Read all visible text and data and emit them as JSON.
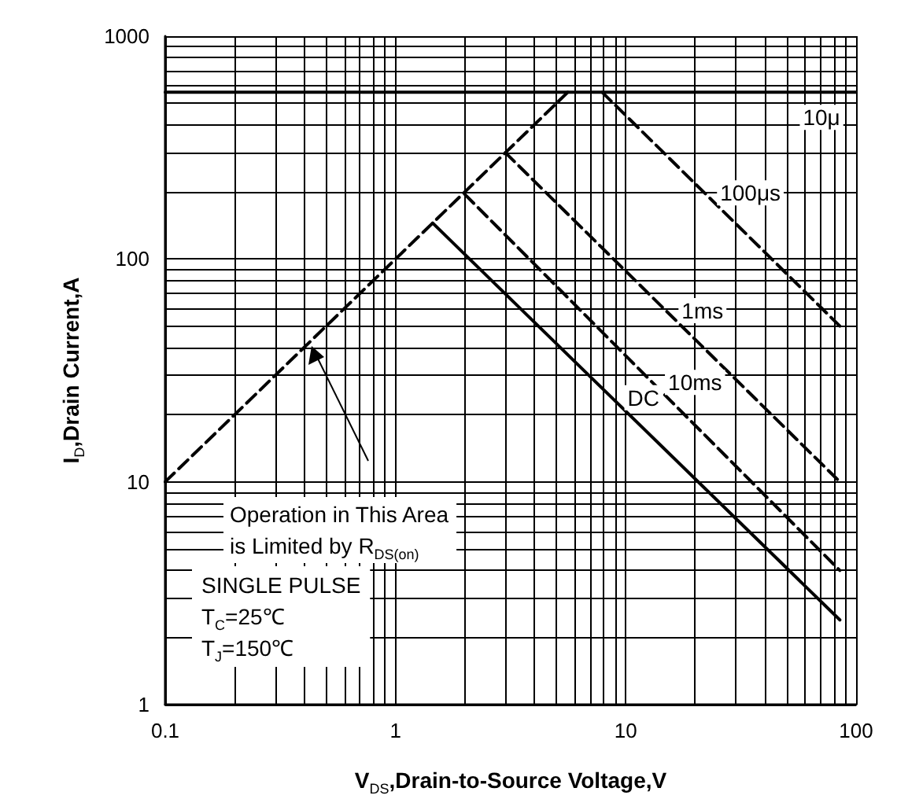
{
  "chart_data": {
    "type": "line",
    "xlabel": "V$_{DS}$,Drain-to-Source Voltage,V",
    "ylabel": "I$_{D}$,Drain Current,A",
    "log": "xy",
    "xlim": [
      0.1,
      100
    ],
    "xticks": [
      0.1,
      {
        "value": 0.2,
        "label": null
      },
      {
        "value": 0.3,
        "label": null
      },
      {
        "value": 0.4,
        "label": null
      },
      {
        "value": 0.5,
        "label": null
      },
      {
        "value": 0.6,
        "label": null
      },
      {
        "value": 0.7,
        "label": null
      },
      {
        "value": 0.8,
        "label": null
      },
      {
        "value": 0.9,
        "label": null
      },
      1,
      {
        "value": 2,
        "label": null
      },
      {
        "value": 3,
        "label": null
      },
      {
        "value": 4,
        "label": null
      },
      {
        "value": 5,
        "label": null
      },
      {
        "value": 6,
        "label": null
      },
      {
        "value": 7,
        "label": null
      },
      {
        "value": 8,
        "label": null
      },
      {
        "value": 9,
        "label": null
      },
      10,
      {
        "value": 20,
        "label": null
      },
      {
        "value": 30,
        "label": null
      },
      {
        "value": 40,
        "label": null
      },
      {
        "value": 50,
        "label": null
      },
      {
        "value": 60,
        "label": null
      },
      {
        "value": 70,
        "label": null
      },
      {
        "value": 80,
        "label": null
      },
      {
        "value": 90,
        "label": null
      },
      100
    ],
    "ylim": [
      1,
      1000
    ],
    "yticks": [
      1,
      {
        "value": 2,
        "label": null
      },
      {
        "value": 3,
        "label": null
      },
      {
        "value": 4,
        "label": null
      },
      {
        "value": 5,
        "label": null
      },
      {
        "value": 6,
        "label": null
      },
      {
        "value": 7,
        "label": null
      },
      {
        "value": 8,
        "label": null
      },
      {
        "value": 9,
        "label": null
      },
      10,
      {
        "value": 20,
        "label": null
      },
      {
        "value": 30,
        "label": null
      },
      {
        "value": 40,
        "label": null
      },
      {
        "value": 50,
        "label": null
      },
      {
        "value": 60,
        "label": null
      },
      {
        "value": 70,
        "label": null
      },
      {
        "value": 80,
        "label": null
      },
      {
        "value": 90,
        "label": null
      },
      100,
      {
        "value": 200,
        "label": null
      },
      {
        "value": 300,
        "label": null
      },
      {
        "value": 400,
        "label": null
      },
      {
        "value": 500,
        "label": null
      },
      {
        "value": 600,
        "label": null
      },
      {
        "value": 700,
        "label": null
      },
      {
        "value": 800,
        "label": null
      },
      {
        "value": 900,
        "label": null
      },
      1000
    ],
    "grid": true,
    "legend": false,
    "marker": "none",
    "series": [
      {
        "color": "#000000",
        "line_style": "dashed",
        "x": [
          0.1,
          5.75
        ],
        "values": [
          10,
          575
        ]
      },
      {
        "name": "10μ",
        "color": "#000000",
        "line_style": "solid",
        "x": [
          0.1,
          100
        ],
        "values": [
          560,
          560
        ]
      },
      {
        "name": "100μs",
        "color": "#000000",
        "line_style": "dashed",
        "x": [
          7.9,
          85
        ],
        "values": [
          560,
          50
        ]
      },
      {
        "name": "1ms",
        "color": "#000000",
        "line_style": "dashed",
        "x": [
          3,
          85
        ],
        "values": [
          300,
          10
        ]
      },
      {
        "name": "10ms",
        "color": "#000000",
        "line_style": "dashed",
        "x": [
          2,
          85
        ],
        "values": [
          195,
          4
        ]
      },
      {
        "name": "DC",
        "color": "#000000",
        "line_style": "solid",
        "x": [
          1.45,
          85
        ],
        "values": [
          145,
          2.4
        ]
      }
    ],
    "annotations": [
      "Operation in This Area\nis Limited by R$_{DS(on)}$",
      "SINGLE PULSE\nT$_{C}$=25℃\nT$_{J}$=150℃"
    ]
  }
}
